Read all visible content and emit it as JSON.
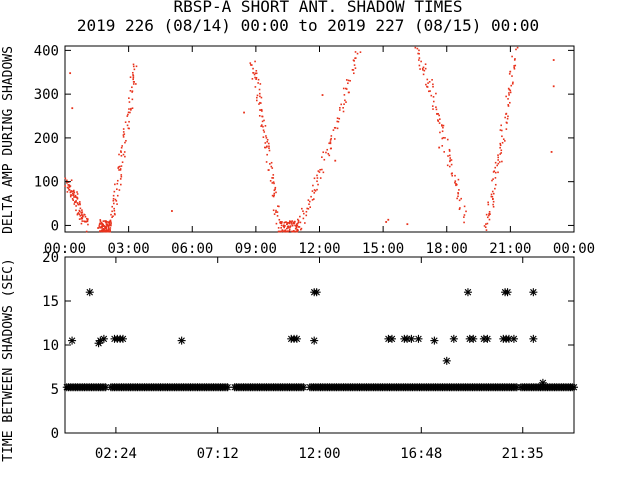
{
  "title_line1": "RBSP-A SHORT ANT. SHADOW TIMES",
  "title_line2": "2019 226 (08/14) 00:00 to 2019 227 (08/15) 00:00",
  "colors": {
    "top_points": "#e8321c",
    "bottom_points": "#000000",
    "axes": "#000000"
  },
  "chart_data": [
    {
      "type": "scatter",
      "panel": "top",
      "ylabel": "DELTA AMP DURING SHADOWS",
      "xlim": [
        "00:00",
        "24:00"
      ],
      "ylim": [
        -15,
        410
      ],
      "xticks": [
        "00:00",
        "03:00",
        "06:00",
        "09:00",
        "12:00",
        "15:00",
        "18:00",
        "21:00",
        "00:00"
      ],
      "yticks": [
        0,
        100,
        200,
        300,
        400
      ],
      "marker": "dot",
      "series": [
        {
          "segments": [
            {
              "x": [
                0.05,
                1.0
              ],
              "y": [
                100,
                0
              ]
            },
            {
              "x": [
                1.6,
                2.1
              ],
              "y": [
                0,
                -5
              ]
            },
            {
              "x": [
                2.1,
                3.3
              ],
              "y": [
                0,
                380
              ]
            },
            {
              "x": [
                8.8,
                10.0
              ],
              "y": [
                370,
                15
              ]
            },
            {
              "x": [
                10.1,
                11.0
              ],
              "y": [
                -5,
                0
              ]
            },
            {
              "x": [
                11.0,
                13.8
              ],
              "y": [
                5,
                400
              ]
            },
            {
              "x": [
                16.6,
                18.8
              ],
              "y": [
                400,
                20
              ]
            },
            {
              "x": [
                19.8,
                21.2
              ],
              "y": [
                0,
                400
              ]
            }
          ]
        }
      ],
      "scattered_points": [
        {
          "x": 0.2,
          "y": 350
        },
        {
          "x": 0.3,
          "y": 270
        },
        {
          "x": 15.1,
          "y": 10
        },
        {
          "x": 15.2,
          "y": 15
        },
        {
          "x": 16.1,
          "y": 5
        },
        {
          "x": 12.7,
          "y": 150
        },
        {
          "x": 23.0,
          "y": 380
        },
        {
          "x": 23.0,
          "y": 320
        },
        {
          "x": 22.9,
          "y": 170
        },
        {
          "x": 8.4,
          "y": 260
        },
        {
          "x": 12.1,
          "y": 300
        },
        {
          "x": 17.6,
          "y": 180
        },
        {
          "x": 5.0,
          "y": 35
        }
      ]
    },
    {
      "type": "scatter",
      "panel": "bottom",
      "ylabel": "TIME BETWEEN SHADOWS (SEC)",
      "xlim": [
        0,
        1440
      ],
      "ylim": [
        0,
        20
      ],
      "xticks": [
        "02:24",
        "07:12",
        "12:00",
        "16:48",
        "21:35"
      ],
      "xtick_minutes": [
        144,
        432,
        720,
        1008,
        1295
      ],
      "yticks": [
        0,
        5,
        10,
        15,
        20
      ],
      "marker": "asterisk",
      "baseline": {
        "y": 5.2,
        "ranges": [
          [
            5,
            115
          ],
          [
            130,
            460
          ],
          [
            480,
            675
          ],
          [
            693,
            1280
          ],
          [
            1290,
            1440
          ]
        ]
      },
      "baseline_extra": [
        {
          "x": 1352,
          "y": 5.7
        }
      ],
      "points": [
        {
          "x": 20,
          "y": 10.5
        },
        {
          "x": 70,
          "y": 16
        },
        {
          "x": 95,
          "y": 10.2
        },
        {
          "x": 100,
          "y": 10.5
        },
        {
          "x": 110,
          "y": 10.7
        },
        {
          "x": 140,
          "y": 10.7
        },
        {
          "x": 148,
          "y": 10.7
        },
        {
          "x": 156,
          "y": 10.7
        },
        {
          "x": 164,
          "y": 10.7
        },
        {
          "x": 330,
          "y": 10.5
        },
        {
          "x": 640,
          "y": 10.7
        },
        {
          "x": 648,
          "y": 10.7
        },
        {
          "x": 656,
          "y": 10.7
        },
        {
          "x": 705,
          "y": 16
        },
        {
          "x": 712,
          "y": 16
        },
        {
          "x": 705,
          "y": 10.5
        },
        {
          "x": 915,
          "y": 10.7
        },
        {
          "x": 925,
          "y": 10.7
        },
        {
          "x": 960,
          "y": 10.7
        },
        {
          "x": 968,
          "y": 10.7
        },
        {
          "x": 980,
          "y": 10.7
        },
        {
          "x": 1045,
          "y": 10.5
        },
        {
          "x": 1100,
          "y": 10.7
        },
        {
          "x": 1000,
          "y": 10.7
        },
        {
          "x": 1080,
          "y": 8.2
        },
        {
          "x": 1140,
          "y": 16
        },
        {
          "x": 1145,
          "y": 10.7
        },
        {
          "x": 1155,
          "y": 10.7
        },
        {
          "x": 1185,
          "y": 10.7
        },
        {
          "x": 1195,
          "y": 10.7
        },
        {
          "x": 1245,
          "y": 16
        },
        {
          "x": 1252,
          "y": 16
        },
        {
          "x": 1240,
          "y": 10.7
        },
        {
          "x": 1248,
          "y": 10.7
        },
        {
          "x": 1256,
          "y": 10.7
        },
        {
          "x": 1270,
          "y": 10.7
        },
        {
          "x": 1325,
          "y": 16
        },
        {
          "x": 1325,
          "y": 10.7
        }
      ]
    }
  ]
}
